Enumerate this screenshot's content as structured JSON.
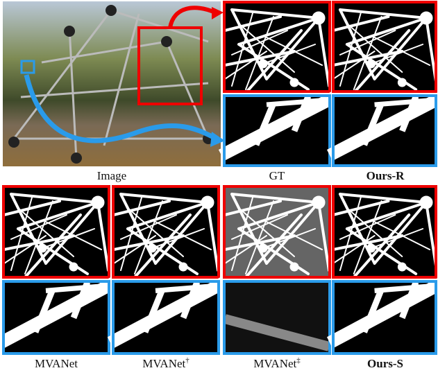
{
  "labels": {
    "image": "Image",
    "gt": "GT",
    "ours_r": "Ours-R",
    "mvanet": "MVANet",
    "mvanet_dagger": {
      "text": "MVANet",
      "sup": "†"
    },
    "mvanet_ddagger": {
      "text": "MVANet",
      "sup": "‡"
    },
    "ours_s": "Ours-S"
  }
}
